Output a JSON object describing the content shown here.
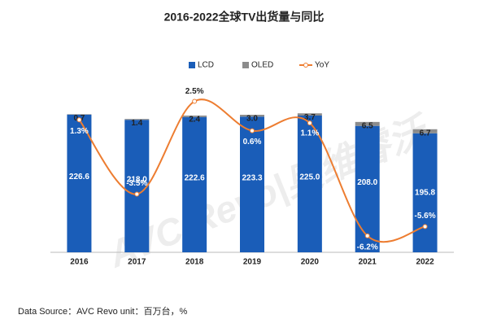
{
  "chart_data": {
    "type": "bar-line",
    "title": "2016-2022全球TV出货量与同比",
    "categories": [
      "2016",
      "2017",
      "2018",
      "2019",
      "2020",
      "2021",
      "2022"
    ],
    "series": [
      {
        "name": "LCD",
        "type": "bar",
        "color": "#1a5db8",
        "values": [
          226.6,
          218.0,
          222.6,
          223.3,
          225.0,
          208.0,
          195.8
        ],
        "value_labels": [
          "226.6",
          "218.0",
          "222.6",
          "223.3",
          "225.0",
          "208.0",
          "195.8"
        ]
      },
      {
        "name": "OLED",
        "type": "bar",
        "color": "#8c8c8c",
        "values": [
          0.7,
          1.4,
          2.4,
          3.0,
          3.7,
          6.5,
          6.7
        ],
        "value_labels": [
          "0.7",
          "1.4",
          "2.4",
          "3.0",
          "3.7",
          "6.5",
          "6.7"
        ]
      },
      {
        "name": "YoY",
        "type": "line",
        "axis": "y2",
        "color": "#ed7d31",
        "values": [
          1.3,
          -3.5,
          2.5,
          0.6,
          1.1,
          -6.2,
          -5.6
        ],
        "value_labels": [
          "1.3%",
          "-3.5%",
          "2.5%",
          "0.6%",
          "1.1%",
          "-6.2%",
          "-5.6%"
        ]
      }
    ],
    "ylim": [
      0,
      300
    ],
    "y2lim": [
      -8,
      4
    ],
    "watermark": "AVC Revo|奥维睿沃",
    "source": "Data Source：AVC Revo  unit：百万台，%"
  }
}
